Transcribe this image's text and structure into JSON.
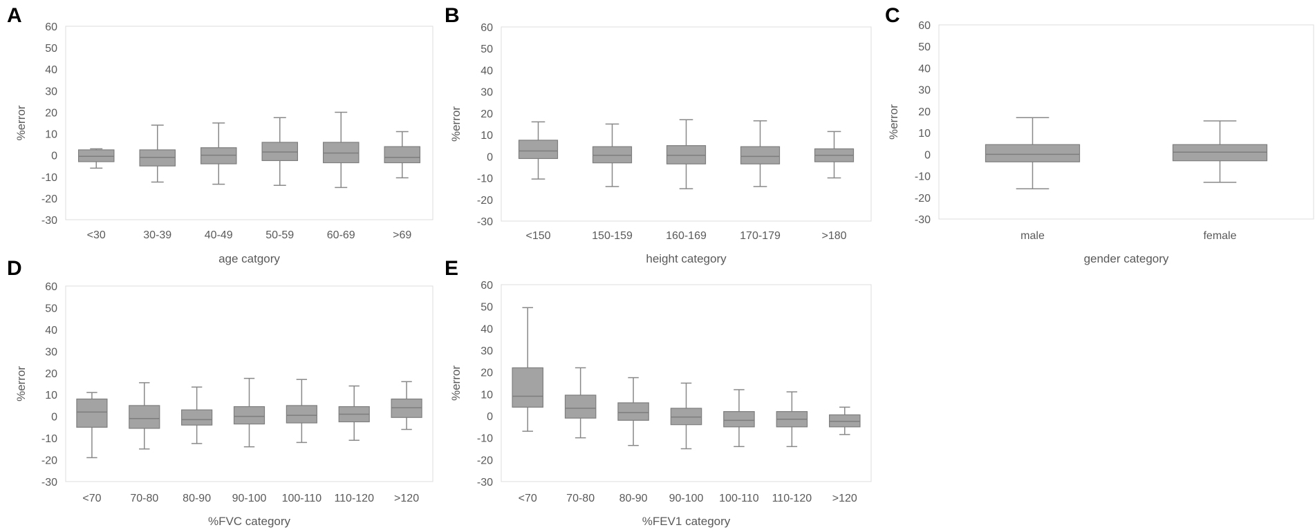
{
  "figure": {
    "panels": [
      {
        "letter": "A",
        "xlabel": "age catgory"
      },
      {
        "letter": "B",
        "xlabel": "height category"
      },
      {
        "letter": "C",
        "xlabel": "gender category"
      },
      {
        "letter": "D",
        "xlabel": "%FVC category"
      },
      {
        "letter": "E",
        "xlabel": "%FEV1 category"
      }
    ]
  },
  "colors": {
    "box_fill": "#a3a3a3",
    "box_stroke": "#7d7d7d",
    "whisker": "#888888",
    "axis_text": "#595959",
    "frame": "#dcdcdc",
    "panel_letter": "#000000"
  },
  "chart_data": [
    {
      "panel": "A",
      "type": "box",
      "title": "",
      "xlabel": "age catgory",
      "ylabel": "%error",
      "ylim": [
        -30,
        60
      ],
      "yticks": [
        -30,
        -20,
        -10,
        0,
        10,
        20,
        30,
        40,
        50,
        60
      ],
      "categories": [
        "<30",
        "30-39",
        "40-49",
        "50-59",
        "60-69",
        ">69"
      ],
      "boxes": [
        {
          "min": -6,
          "q1": -3,
          "median": -0.5,
          "q3": 2.5,
          "max": 3
        },
        {
          "min": -12.5,
          "q1": -5,
          "median": -1,
          "q3": 2.5,
          "max": 14
        },
        {
          "min": -13.5,
          "q1": -4,
          "median": 0,
          "q3": 3.5,
          "max": 15
        },
        {
          "min": -14,
          "q1": -2.5,
          "median": 1.5,
          "q3": 6,
          "max": 17.5
        },
        {
          "min": -15,
          "q1": -3.5,
          "median": 1,
          "q3": 6,
          "max": 20
        },
        {
          "min": -10.5,
          "q1": -3.5,
          "median": -1,
          "q3": 4,
          "max": 11
        }
      ]
    },
    {
      "panel": "B",
      "type": "box",
      "title": "",
      "xlabel": "height category",
      "ylabel": "%error",
      "ylim": [
        -30,
        60
      ],
      "yticks": [
        -30,
        -20,
        -10,
        0,
        10,
        20,
        30,
        40,
        50,
        60
      ],
      "categories": [
        "<150",
        "150-159",
        "160-169",
        "170-179",
        ">180"
      ],
      "boxes": [
        {
          "min": -10.5,
          "q1": -1,
          "median": 2.5,
          "q3": 7.5,
          "max": 16
        },
        {
          "min": -14,
          "q1": -3,
          "median": 0.5,
          "q3": 4.5,
          "max": 15
        },
        {
          "min": -15,
          "q1": -3.5,
          "median": 0.5,
          "q3": 5,
          "max": 17
        },
        {
          "min": -14,
          "q1": -3.5,
          "median": 0,
          "q3": 4.5,
          "max": 16.5
        },
        {
          "min": -10,
          "q1": -2.5,
          "median": 0.5,
          "q3": 3.5,
          "max": 11.5
        }
      ]
    },
    {
      "panel": "C",
      "type": "box",
      "title": "",
      "xlabel": "gender category",
      "ylabel": "%error",
      "ylim": [
        -30,
        60
      ],
      "yticks": [
        -30,
        -20,
        -10,
        0,
        10,
        20,
        30,
        40,
        50,
        60
      ],
      "categories": [
        "male",
        "female"
      ],
      "boxes": [
        {
          "min": -16,
          "q1": -3.5,
          "median": 0,
          "q3": 4.5,
          "max": 17
        },
        {
          "min": -13,
          "q1": -3,
          "median": 1,
          "q3": 4.5,
          "max": 15.5
        }
      ]
    },
    {
      "panel": "D",
      "type": "box",
      "title": "",
      "xlabel": "%FVC category",
      "ylabel": "%error",
      "ylim": [
        -30,
        60
      ],
      "yticks": [
        -30,
        -20,
        -10,
        0,
        10,
        20,
        30,
        40,
        50,
        60
      ],
      "categories": [
        "<70",
        "70-80",
        "80-90",
        "90-100",
        "100-110",
        "110-120",
        ">120"
      ],
      "boxes": [
        {
          "min": -19,
          "q1": -5,
          "median": 2,
          "q3": 8,
          "max": 11
        },
        {
          "min": -15,
          "q1": -5.5,
          "median": -1,
          "q3": 5,
          "max": 15.5
        },
        {
          "min": -12.5,
          "q1": -4,
          "median": -1.5,
          "q3": 3,
          "max": 13.5
        },
        {
          "min": -14,
          "q1": -3.5,
          "median": 0,
          "q3": 4.5,
          "max": 17.5
        },
        {
          "min": -12,
          "q1": -3,
          "median": 0.5,
          "q3": 5,
          "max": 17
        },
        {
          "min": -11,
          "q1": -2.5,
          "median": 1,
          "q3": 4.5,
          "max": 14
        },
        {
          "min": -6,
          "q1": -0.5,
          "median": 4,
          "q3": 8,
          "max": 16
        }
      ]
    },
    {
      "panel": "E",
      "type": "box",
      "title": "",
      "xlabel": "%FEV1 category",
      "ylabel": "%error",
      "ylim": [
        -30,
        60
      ],
      "yticks": [
        -30,
        -20,
        -10,
        0,
        10,
        20,
        30,
        40,
        50,
        60
      ],
      "categories": [
        "<70",
        "70-80",
        "80-90",
        "90-100",
        "100-110",
        "110-120",
        ">120"
      ],
      "boxes": [
        {
          "min": -7,
          "q1": 4,
          "median": 9,
          "q3": 22,
          "max": 49.5
        },
        {
          "min": -10,
          "q1": -1,
          "median": 3.5,
          "q3": 9.5,
          "max": 22
        },
        {
          "min": -13.5,
          "q1": -2,
          "median": 1.5,
          "q3": 6,
          "max": 17.5
        },
        {
          "min": -15,
          "q1": -4,
          "median": -0.5,
          "q3": 3.5,
          "max": 15
        },
        {
          "min": -14,
          "q1": -5,
          "median": -2,
          "q3": 2,
          "max": 12
        },
        {
          "min": -14,
          "q1": -5,
          "median": -1.5,
          "q3": 2,
          "max": 11
        },
        {
          "min": -8.5,
          "q1": -5,
          "median": -2.5,
          "q3": 0.5,
          "max": 4
        }
      ]
    }
  ]
}
